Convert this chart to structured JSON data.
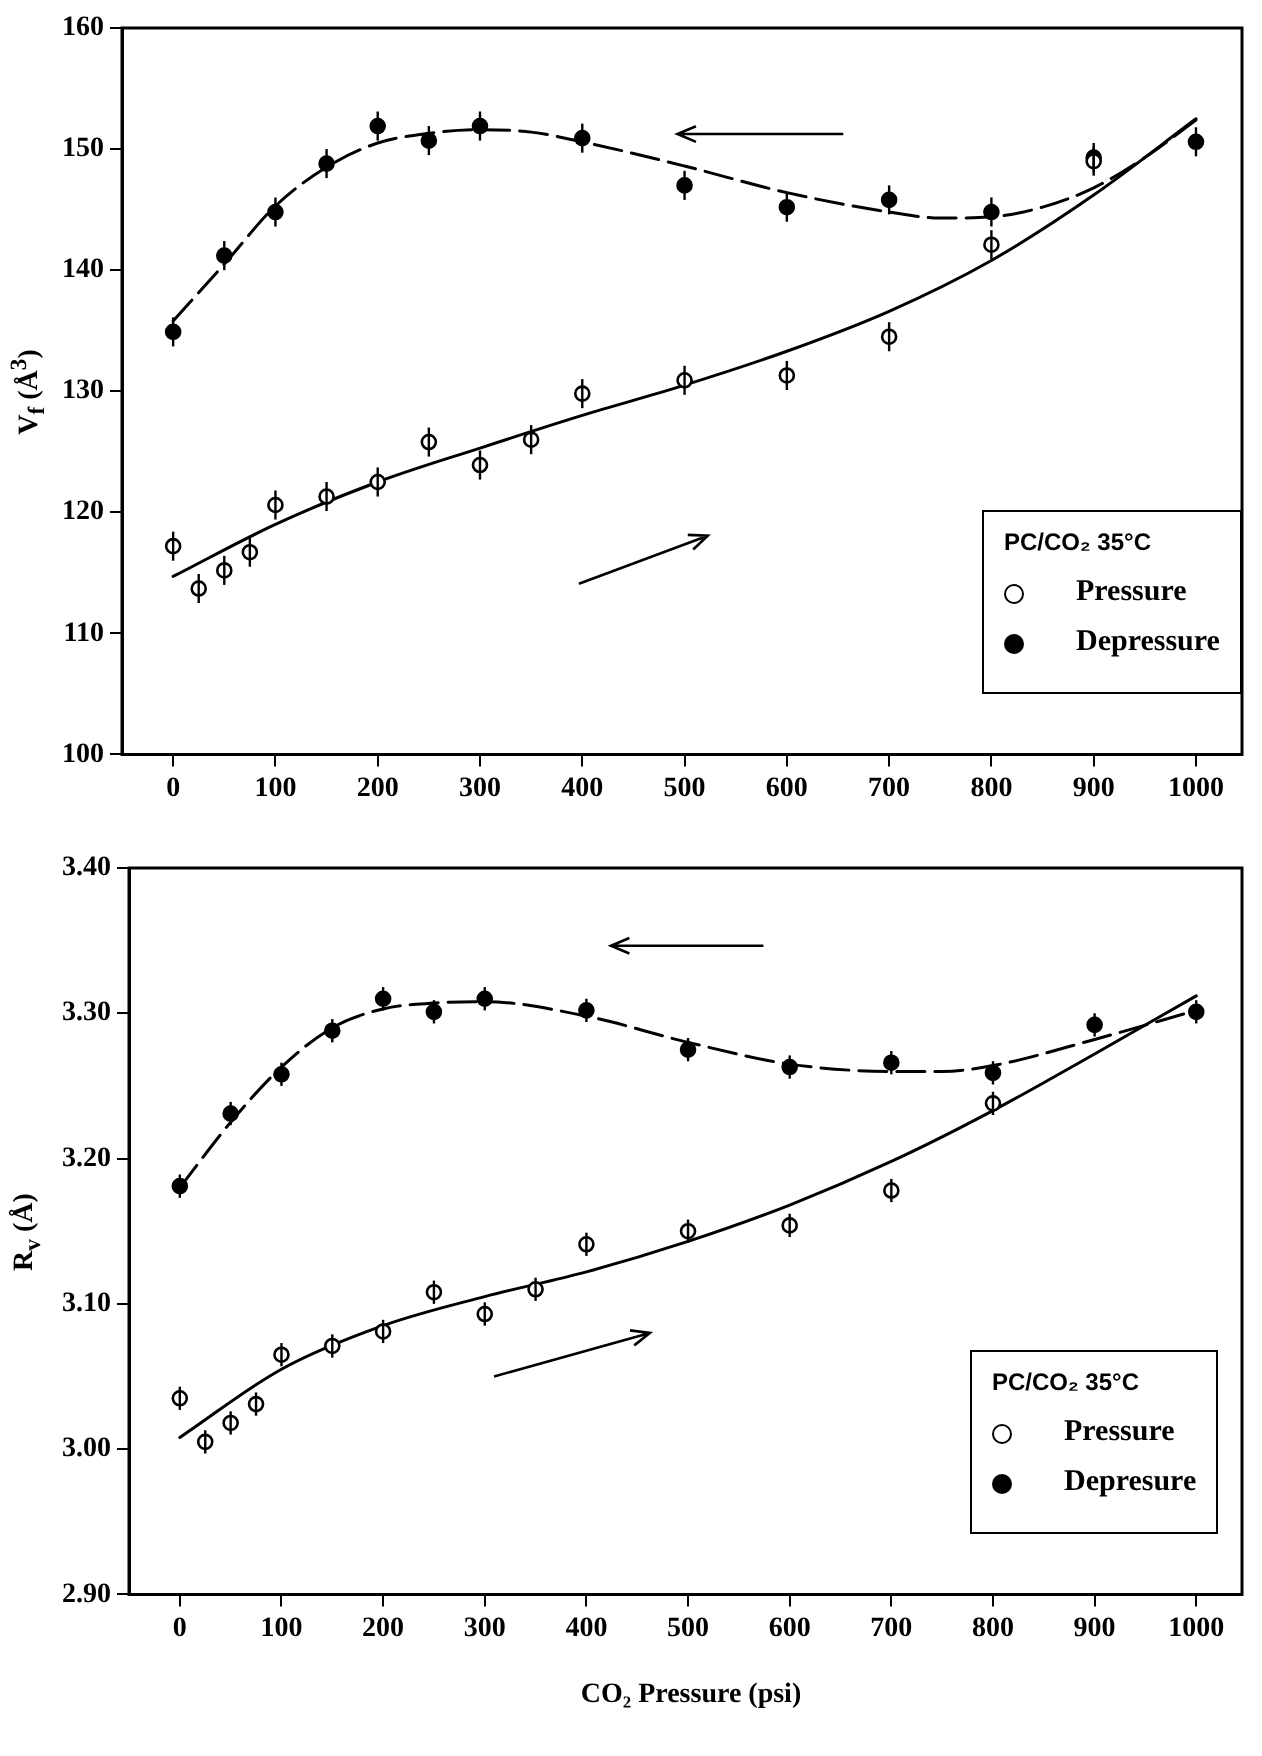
{
  "chart_data": [
    {
      "type": "scatter",
      "ylabel": "V$_{f}$ (Å$^{3}$)",
      "legend_title": "PC/CO₂  35°C",
      "legend": "bottom right",
      "grid": false,
      "xlim": [
        -50,
        1045
      ],
      "xticks": [
        0,
        100,
        200,
        300,
        400,
        500,
        600,
        700,
        800,
        900,
        1000
      ],
      "ylim": [
        100,
        160
      ],
      "yticks": [
        100,
        110,
        120,
        130,
        140,
        150,
        160
      ],
      "series": [
        {
          "name": "Pressure",
          "type": "scatter",
          "marker": "circle",
          "color": "#ffffff",
          "x": [
            0,
            25,
            50,
            75,
            100,
            150,
            200,
            250,
            300,
            350,
            400,
            500,
            600,
            700,
            800,
            900
          ],
          "values": [
            117.2,
            113.7,
            115.2,
            116.7,
            120.6,
            121.3,
            122.5,
            125.8,
            123.9,
            126.0,
            129.8,
            130.9,
            131.3,
            134.5,
            142.1,
            149.0
          ],
          "errors": [
            1.2,
            1.2,
            1.2,
            1.2,
            1.2,
            1.2,
            1.2,
            1.2,
            1.2,
            1.2,
            1.2,
            1.2,
            1.2,
            1.2,
            1.2,
            1.2
          ]
        },
        {
          "name": "Depressure",
          "type": "scatter",
          "marker": "circle",
          "color": "#000000",
          "x": [
            0,
            50,
            100,
            150,
            200,
            250,
            300,
            400,
            500,
            600,
            700,
            800,
            900,
            1000
          ],
          "values": [
            134.9,
            141.2,
            144.8,
            148.8,
            151.9,
            150.7,
            151.9,
            150.9,
            147.0,
            145.2,
            145.8,
            144.8,
            149.3,
            150.6
          ],
          "errors": [
            1.2,
            1.2,
            1.2,
            1.2,
            1.2,
            1.2,
            1.2,
            1.2,
            1.2,
            1.2,
            1.2,
            1.2,
            1.2,
            1.2
          ]
        },
        {
          "type": "line",
          "marker": "none",
          "line_style": "solid",
          "color": "#000000",
          "x": [
            0,
            100,
            200,
            300,
            400,
            500,
            600,
            700,
            800,
            900,
            1000
          ],
          "values": [
            114.7,
            119,
            122.5,
            125.3,
            128,
            130.5,
            133.3,
            136.6,
            140.8,
            146.2,
            152.5
          ]
        },
        {
          "type": "line",
          "marker": "none",
          "line_style": "dashed",
          "color": "#000000",
          "x": [
            0,
            50,
            100,
            150,
            200,
            250,
            300,
            350,
            400,
            500,
            600,
            700,
            750,
            800,
            850,
            900,
            950,
            1000
          ],
          "values": [
            135.8,
            140.5,
            145.3,
            148.5,
            150.5,
            151.3,
            151.6,
            151.4,
            150.6,
            148.6,
            146.4,
            144.8,
            144.3,
            144.4,
            145.2,
            146.8,
            149.3,
            152.4
          ]
        }
      ]
    },
    {
      "type": "scatter",
      "ylabel": "R$_{v}$ (Å)",
      "xlabel": "CO₂ Pressure   (psi)",
      "legend_title": "PC/CO₂  35°C",
      "legend": "bottom right",
      "grid": false,
      "xlim": [
        -50,
        1045
      ],
      "xticks": [
        0,
        100,
        200,
        300,
        400,
        500,
        600,
        700,
        800,
        900,
        1000
      ],
      "ylim": [
        2.9,
        3.4
      ],
      "yticks": [
        {
          "value": 2.9,
          "label": "2.90"
        },
        {
          "value": 3.0,
          "label": "3.00"
        },
        {
          "value": 3.1,
          "label": "3.10"
        },
        {
          "value": 3.2,
          "label": "3.20"
        },
        {
          "value": 3.3,
          "label": "3.30"
        },
        {
          "value": 3.4,
          "label": "3.40"
        }
      ],
      "series": [
        {
          "name": "Pressure",
          "type": "scatter",
          "marker": "circle",
          "color": "#ffffff",
          "x": [
            0,
            25,
            50,
            75,
            100,
            150,
            200,
            250,
            300,
            350,
            400,
            500,
            600,
            700,
            800
          ],
          "values": [
            3.035,
            3.005,
            3.018,
            3.031,
            3.065,
            3.071,
            3.081,
            3.108,
            3.093,
            3.11,
            3.141,
            3.15,
            3.154,
            3.178,
            3.238
          ],
          "errors": [
            0.008,
            0.008,
            0.008,
            0.008,
            0.008,
            0.008,
            0.008,
            0.008,
            0.008,
            0.008,
            0.008,
            0.008,
            0.008,
            0.008,
            0.008
          ]
        },
        {
          "name": "Depresure",
          "type": "scatter",
          "marker": "circle",
          "color": "#000000",
          "x": [
            0,
            50,
            100,
            150,
            200,
            250,
            300,
            400,
            500,
            600,
            700,
            800,
            900,
            1000
          ],
          "values": [
            3.181,
            3.231,
            3.258,
            3.288,
            3.31,
            3.301,
            3.31,
            3.302,
            3.275,
            3.263,
            3.266,
            3.259,
            3.292,
            3.301
          ],
          "errors": [
            0.008,
            0.008,
            0.008,
            0.008,
            0.008,
            0.008,
            0.008,
            0.008,
            0.008,
            0.008,
            0.008,
            0.008,
            0.008,
            0.008
          ]
        },
        {
          "type": "line",
          "marker": "none",
          "line_style": "solid",
          "color": "#000000",
          "x": [
            0,
            100,
            200,
            300,
            400,
            500,
            600,
            700,
            800,
            900,
            1000
          ],
          "values": [
            3.008,
            3.055,
            3.085,
            3.105,
            3.122,
            3.143,
            3.168,
            3.198,
            3.233,
            3.272,
            3.312
          ]
        },
        {
          "type": "line",
          "marker": "none",
          "line_style": "dashed",
          "color": "#000000",
          "x": [
            0,
            50,
            100,
            150,
            200,
            250,
            300,
            400,
            500,
            600,
            700,
            750,
            800,
            900,
            1000
          ],
          "values": [
            3.18,
            3.225,
            3.263,
            3.29,
            3.303,
            3.307,
            3.308,
            3.298,
            3.28,
            3.265,
            3.26,
            3.26,
            3.264,
            3.282,
            3.302
          ]
        }
      ]
    }
  ]
}
